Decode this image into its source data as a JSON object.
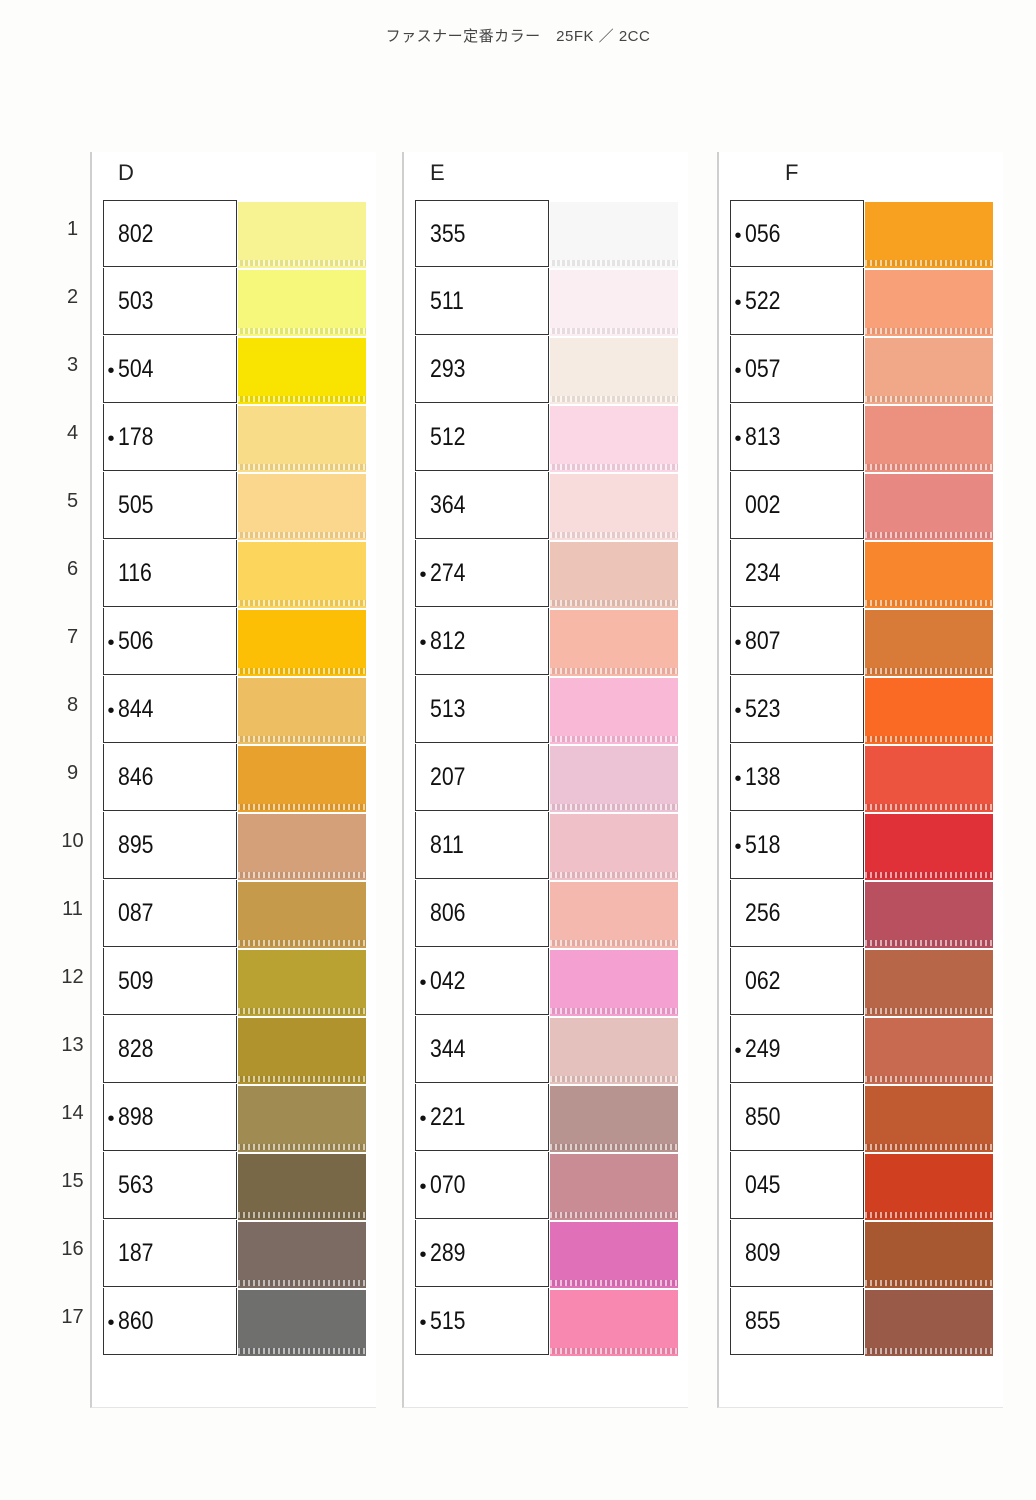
{
  "title": "ファスナー定番カラー　25FK ／ 2CC",
  "row_numbers": [
    "1",
    "2",
    "3",
    "4",
    "5",
    "6",
    "7",
    "8",
    "9",
    "10",
    "11",
    "12",
    "13",
    "14",
    "15",
    "16",
    "17"
  ],
  "columns": [
    {
      "name": "D",
      "items": [
        {
          "code": "802",
          "marked": false,
          "color": "#f7f392"
        },
        {
          "code": "503",
          "marked": false,
          "color": "#f5f87a"
        },
        {
          "code": "504",
          "marked": true,
          "color": "#f9e300"
        },
        {
          "code": "178",
          "marked": true,
          "color": "#f9dc88"
        },
        {
          "code": "505",
          "marked": false,
          "color": "#fad78c"
        },
        {
          "code": "116",
          "marked": false,
          "color": "#fcd55c"
        },
        {
          "code": "506",
          "marked": true,
          "color": "#fdbf05"
        },
        {
          "code": "844",
          "marked": true,
          "color": "#edbf62"
        },
        {
          "code": "846",
          "marked": false,
          "color": "#e9a12e"
        },
        {
          "code": "895",
          "marked": false,
          "color": "#d4a07a"
        },
        {
          "code": "087",
          "marked": false,
          "color": "#c59a4a"
        },
        {
          "code": "509",
          "marked": false,
          "color": "#b9a132"
        },
        {
          "code": "828",
          "marked": false,
          "color": "#b0932c"
        },
        {
          "code": "898",
          "marked": true,
          "color": "#a08b52"
        },
        {
          "code": "563",
          "marked": false,
          "color": "#786848"
        },
        {
          "code": "187",
          "marked": false,
          "color": "#7b6b63"
        },
        {
          "code": "860",
          "marked": true,
          "color": "#6f706e"
        }
      ]
    },
    {
      "name": "E",
      "items": [
        {
          "code": "355",
          "marked": false,
          "color": "#f7f7f7"
        },
        {
          "code": "511",
          "marked": false,
          "color": "#fbeef2"
        },
        {
          "code": "293",
          "marked": false,
          "color": "#f6ebe3"
        },
        {
          "code": "512",
          "marked": false,
          "color": "#fbd7e6"
        },
        {
          "code": "364",
          "marked": false,
          "color": "#f8dbdb"
        },
        {
          "code": "274",
          "marked": true,
          "color": "#ecc4b8"
        },
        {
          "code": "812",
          "marked": true,
          "color": "#f8b8a8"
        },
        {
          "code": "513",
          "marked": false,
          "color": "#fab8d7"
        },
        {
          "code": "207",
          "marked": false,
          "color": "#ecc3d4"
        },
        {
          "code": "811",
          "marked": false,
          "color": "#f0c0c8"
        },
        {
          "code": "806",
          "marked": false,
          "color": "#f4b8ae"
        },
        {
          "code": "042",
          "marked": true,
          "color": "#f4a0d0"
        },
        {
          "code": "344",
          "marked": false,
          "color": "#e4c1bc"
        },
        {
          "code": "221",
          "marked": true,
          "color": "#b89491"
        },
        {
          "code": "070",
          "marked": true,
          "color": "#c98c95"
        },
        {
          "code": "289",
          "marked": true,
          "color": "#e070b8"
        },
        {
          "code": "515",
          "marked": true,
          "color": "#f888b0"
        }
      ]
    },
    {
      "name": "F",
      "items": [
        {
          "code": "056",
          "marked": true,
          "color": "#f8a020"
        },
        {
          "code": "522",
          "marked": true,
          "color": "#f8a078"
        },
        {
          "code": "057",
          "marked": true,
          "color": "#f0a888"
        },
        {
          "code": "813",
          "marked": true,
          "color": "#ec9080"
        },
        {
          "code": "002",
          "marked": false,
          "color": "#e88882"
        },
        {
          "code": "234",
          "marked": false,
          "color": "#f8862c"
        },
        {
          "code": "807",
          "marked": true,
          "color": "#d87a38"
        },
        {
          "code": "523",
          "marked": true,
          "color": "#fa6a24"
        },
        {
          "code": "138",
          "marked": true,
          "color": "#ec5440"
        },
        {
          "code": "518",
          "marked": true,
          "color": "#e03038"
        },
        {
          "code": "256",
          "marked": false,
          "color": "#b85060"
        },
        {
          "code": "062",
          "marked": false,
          "color": "#b86648"
        },
        {
          "code": "249",
          "marked": true,
          "color": "#c86a50"
        },
        {
          "code": "850",
          "marked": false,
          "color": "#c05a30"
        },
        {
          "code": "045",
          "marked": false,
          "color": "#d04020"
        },
        {
          "code": "809",
          "marked": false,
          "color": "#a85830"
        },
        {
          "code": "855",
          "marked": false,
          "color": "#9a5a48"
        }
      ]
    }
  ]
}
